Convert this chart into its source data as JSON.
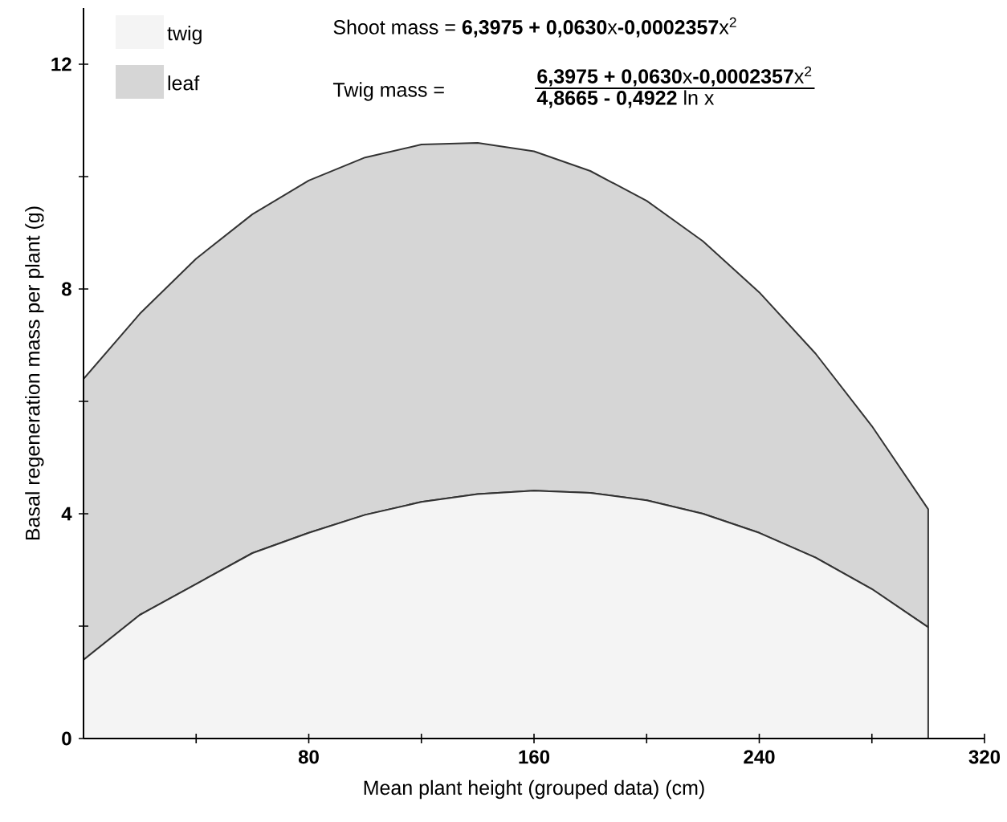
{
  "chart_data": {
    "type": "area",
    "stacked": true,
    "xlabel": "Mean plant height  (grouped data)  (cm)",
    "ylabel": "Basal regeneration mass per plant (g)",
    "annotations": [
      "Shoot mass = **6,3975 + 0,0630**x**-0,0002357**x$^{2}$",
      "Twig mass =",
      "**6,3975 + 0,0630**x**-0,0002357**x$^{2}$",
      "**4,8665 - 0,4922** ln x"
    ],
    "x": [
      0,
      20,
      40,
      60,
      80,
      100,
      120,
      140,
      160,
      180,
      200,
      220,
      240,
      260,
      280,
      300
    ],
    "series": [
      {
        "name": "twig",
        "color": "#f4f4f4",
        "values": [
          1.4,
          2.2,
          2.75,
          3.3,
          3.66,
          3.98,
          4.21,
          4.35,
          4.41,
          4.37,
          4.24,
          4.0,
          3.66,
          3.22,
          2.66,
          1.98
        ]
      },
      {
        "name": "leaf",
        "color": "#d6d6d6",
        "values": [
          5.0,
          5.36,
          5.79,
          6.03,
          6.27,
          6.36,
          6.36,
          6.25,
          6.04,
          5.73,
          5.33,
          4.85,
          4.28,
          3.63,
          2.9,
          2.1
        ]
      }
    ],
    "xlim": [
      0,
      320
    ],
    "ylim": [
      0,
      13
    ],
    "xticks": [
      {
        "value": 40,
        "label": null
      },
      80,
      {
        "value": 120,
        "label": null
      },
      160,
      {
        "value": 200,
        "label": null
      },
      240,
      {
        "value": 280,
        "label": null
      },
      320
    ],
    "yticks": [
      0,
      {
        "value": 2,
        "label": null
      },
      4,
      {
        "value": 6,
        "label": null
      },
      8,
      {
        "value": 10,
        "label": null
      },
      12
    ],
    "legend": "top left",
    "grid": false
  }
}
